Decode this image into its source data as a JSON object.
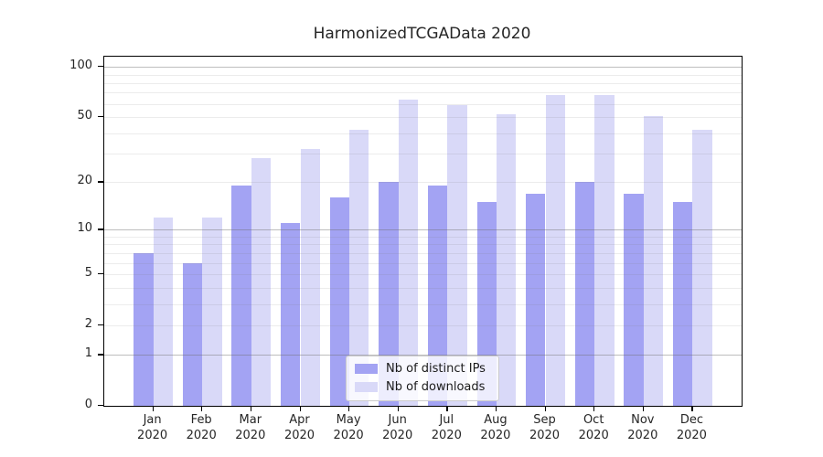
{
  "title": "HarmonizedTCGAData 2020",
  "chart_data": {
    "type": "bar",
    "title": "HarmonizedTCGAData 2020",
    "categories": [
      "Jan 2020",
      "Feb 2020",
      "Mar 2020",
      "Apr 2020",
      "May 2020",
      "Jun 2020",
      "Jul 2020",
      "Aug 2020",
      "Sep 2020",
      "Oct 2020",
      "Nov 2020",
      "Dec 2020"
    ],
    "months": [
      "Jan",
      "Feb",
      "Mar",
      "Apr",
      "May",
      "Jun",
      "Jul",
      "Aug",
      "Sep",
      "Oct",
      "Nov",
      "Dec"
    ],
    "year": "2020",
    "series": [
      {
        "name": "Nb of distinct IPs",
        "color": "#a3a3f3",
        "values": [
          7,
          6,
          19,
          11,
          16,
          20,
          19,
          15,
          17,
          20,
          17,
          15
        ]
      },
      {
        "name": "Nb of downloads",
        "color": "#d9d9f8",
        "values": [
          12,
          12,
          28,
          32,
          42,
          64,
          59,
          52,
          68,
          68,
          51,
          42
        ]
      }
    ],
    "yscale": "log1p",
    "ylim": [
      0,
      115
    ],
    "ytick_labels": [
      0,
      1,
      2,
      5,
      10,
      20,
      50,
      100
    ],
    "grid_major_values": [
      1,
      10,
      100
    ],
    "grid_minor_values": [
      2,
      3,
      4,
      5,
      6,
      7,
      8,
      9,
      20,
      30,
      40,
      50,
      60,
      70,
      80,
      90
    ],
    "grid": true,
    "legend_position": "lower center"
  },
  "colors": {
    "ips_bar": "#a3a3f3",
    "downloads_bar": "#d9d9f8",
    "grid_major": "rgba(110,110,110,0.45)",
    "grid_minor": "rgba(130,130,130,0.15)",
    "spine": "#000000",
    "text": "#262626",
    "legend_border": "#cccccc"
  }
}
